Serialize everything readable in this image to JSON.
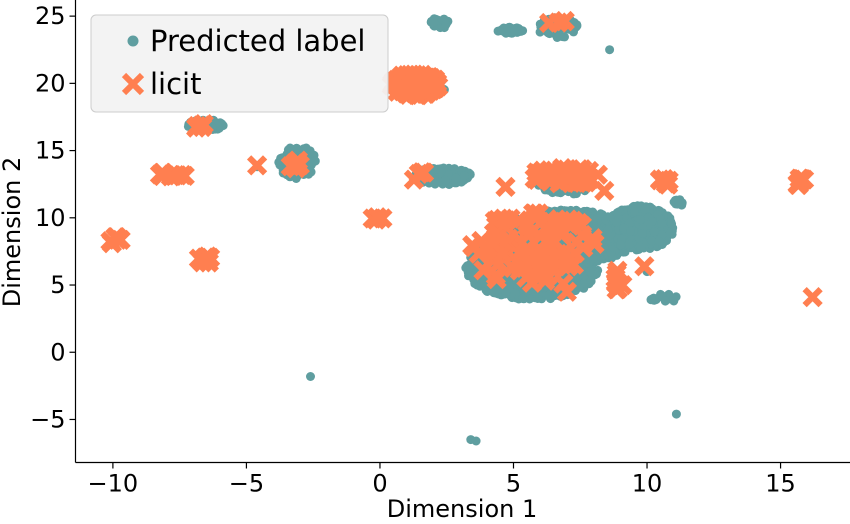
{
  "chart_data": {
    "type": "scatter",
    "xlabel": "Dimension 1",
    "ylabel": "Dimension 2",
    "xlim": [
      -11.4,
      17.6
    ],
    "ylim": [
      -8.2,
      26.2
    ],
    "xticks": [
      -10,
      -5,
      0,
      5,
      10,
      15
    ],
    "xtick_labels": [
      "−10",
      "−5",
      "0",
      "5",
      "10",
      "15"
    ],
    "yticks": [
      -5,
      0,
      5,
      10,
      15,
      20,
      25
    ],
    "ytick_labels": [
      "−5",
      "0",
      "5",
      "10",
      "15",
      "20",
      "25"
    ],
    "grid": false,
    "legend_position": "upper-left",
    "series": [
      {
        "name": "Predicted label",
        "marker": "circle",
        "color": "#5f9ea0",
        "clusters": [
          {
            "x": [
              3.2,
              8.2
            ],
            "y": [
              3.9,
              8.6
            ],
            "n": 900
          },
          {
            "x": [
              4.2,
              9.6
            ],
            "y": [
              6.5,
              10.6
            ],
            "n": 900
          },
          {
            "x": [
              8.5,
              11.0
            ],
            "y": [
              7.6,
              10.9
            ],
            "n": 500
          },
          {
            "x": [
              5.9,
              8.0
            ],
            "y": [
              11.7,
              13.7
            ],
            "n": 120
          },
          {
            "x": [
              1.3,
              3.4
            ],
            "y": [
              12.4,
              13.8
            ],
            "n": 120
          },
          {
            "x": [
              -3.8,
              -2.4
            ],
            "y": [
              12.9,
              15.4
            ],
            "n": 80
          },
          {
            "x": [
              -7.2,
              -5.8
            ],
            "y": [
              16.5,
              17.3
            ],
            "n": 60
          },
          {
            "x": [
              4.4,
              5.4
            ],
            "y": [
              23.7,
              24.2
            ],
            "n": 40
          },
          {
            "x": [
              5.9,
              7.4
            ],
            "y": [
              23.4,
              24.9
            ],
            "n": 70
          },
          {
            "x": [
              1.9,
              2.6
            ],
            "y": [
              24.1,
              24.9
            ],
            "n": 20
          },
          {
            "x": [
              10.1,
              11.2
            ],
            "y": [
              3.7,
              4.4
            ],
            "n": 20
          },
          {
            "x": [
              10.9,
              11.4
            ],
            "y": [
              10.8,
              11.4
            ],
            "n": 15
          },
          {
            "x": [
              1.0,
              2.5
            ],
            "y": [
              19.2,
              20.4
            ],
            "n": 40
          }
        ],
        "points": [
          {
            "x": -2.6,
            "y": -1.8
          },
          {
            "x": 3.4,
            "y": -6.5
          },
          {
            "x": 3.6,
            "y": -6.6
          },
          {
            "x": 11.1,
            "y": -4.6
          },
          {
            "x": 8.6,
            "y": 22.5
          },
          {
            "x": -7.8,
            "y": 13.1
          },
          {
            "x": -4.6,
            "y": 13.8
          },
          {
            "x": 10.0,
            "y": 6.0
          },
          {
            "x": -6.6,
            "y": 7.1
          }
        ]
      },
      {
        "name": "licit",
        "marker": "x",
        "color": "#ff7f50",
        "clusters": [
          {
            "x": [
              0.4,
              2.2
            ],
            "y": [
              19.1,
              20.7
            ],
            "n": 120
          },
          {
            "x": [
              -10.3,
              -9.7
            ],
            "y": [
              8.1,
              8.6
            ],
            "n": 6
          },
          {
            "x": [
              -8.6,
              -7.2
            ],
            "y": [
              12.9,
              13.5
            ],
            "n": 10
          },
          {
            "x": [
              -6.9,
              -6.3
            ],
            "y": [
              6.6,
              7.2
            ],
            "n": 6
          },
          {
            "x": [
              -7.0,
              -6.3
            ],
            "y": [
              16.6,
              17.1
            ],
            "n": 5
          },
          {
            "x": [
              -3.4,
              -2.9
            ],
            "y": [
              13.6,
              14.6
            ],
            "n": 6
          },
          {
            "x": [
              -0.3,
              0.1
            ],
            "y": [
              9.8,
              10.1
            ],
            "n": 4
          },
          {
            "x": [
              15.4,
              16.0
            ],
            "y": [
              12.3,
              13.0
            ],
            "n": 8
          },
          {
            "x": [
              10.3,
              10.9
            ],
            "y": [
              12.2,
              12.9
            ],
            "n": 6
          },
          {
            "x": [
              5.7,
              8.2
            ],
            "y": [
              12.5,
              13.7
            ],
            "n": 40
          },
          {
            "x": [
              3.4,
              8.2
            ],
            "y": [
              4.8,
              10.4
            ],
            "n": 90
          },
          {
            "x": [
              6.3,
              7.0
            ],
            "y": [
              24.1,
              24.8
            ],
            "n": 4
          },
          {
            "x": [
              8.8,
              9.1
            ],
            "y": [
              4.4,
              6.8
            ],
            "n": 8
          },
          {
            "x": [
              1.2,
              2.1
            ],
            "y": [
              12.5,
              13.5
            ],
            "n": 4
          }
        ],
        "points": [
          {
            "x": 16.2,
            "y": 4.1
          },
          {
            "x": -4.6,
            "y": 13.9
          },
          {
            "x": 4.7,
            "y": 12.3
          },
          {
            "x": 9.9,
            "y": 6.4
          },
          {
            "x": 7.0,
            "y": 4.5
          },
          {
            "x": 8.4,
            "y": 12.0
          }
        ]
      }
    ]
  }
}
